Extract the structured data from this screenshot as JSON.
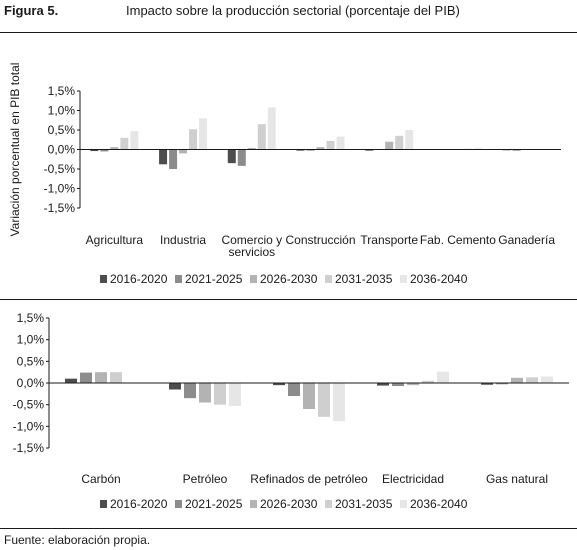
{
  "figure": {
    "label": "Figura 5.",
    "title": "Impacto sobre la producción sectorial (porcentaje del PIB)",
    "source": "Fuente: elaboración propia."
  },
  "colors": [
    "#4d4d4d",
    "#8c8c8c",
    "#b3b3b3",
    "#cfcfcf",
    "#e6e6e6"
  ],
  "chart_data": [
    {
      "type": "bar",
      "title": "",
      "xlabel": "",
      "ylabel": "Variación porcentual en PIB total",
      "ylim": [
        -1.5,
        1.5
      ],
      "yticks": [
        1.5,
        1.0,
        0.5,
        0.0,
        -0.5,
        -1.0,
        -1.5
      ],
      "ytick_labels": [
        "1,5%",
        "1,0%",
        "0,5%",
        "0,0%",
        "-0,5%",
        "-1,0%",
        "-1,5%"
      ],
      "grid": false,
      "legend_position": "bottom",
      "categories": [
        "Agricultura",
        "Industria",
        "Comercio y servicios",
        "Construcción",
        "Transporte",
        "Fab. Cemento",
        "Ganadería"
      ],
      "category_labels": [
        [
          "Agricultura"
        ],
        [
          "Industria"
        ],
        [
          "Comercio y",
          "servicios"
        ],
        [
          "Construcción"
        ],
        [
          "Transporte"
        ],
        [
          "Fab. Cemento"
        ],
        [
          "Ganadería"
        ]
      ],
      "series": [
        {
          "name": "2016-2020",
          "values": [
            -0.04,
            -0.38,
            -0.35,
            -0.03,
            -0.03,
            0.0,
            -0.02
          ]
        },
        {
          "name": "2021-2025",
          "values": [
            -0.05,
            -0.5,
            -0.42,
            -0.03,
            0.01,
            0.0,
            -0.03
          ]
        },
        {
          "name": "2026-2030",
          "values": [
            0.06,
            -0.1,
            0.04,
            0.06,
            0.2,
            0.01,
            -0.01
          ]
        },
        {
          "name": "2031-2035",
          "values": [
            0.3,
            0.52,
            0.65,
            0.22,
            0.35,
            0.02,
            0.0
          ]
        },
        {
          "name": "2036-2040",
          "values": [
            0.47,
            0.8,
            1.08,
            0.33,
            0.5,
            0.03,
            0.0
          ]
        }
      ]
    },
    {
      "type": "bar",
      "title": "",
      "xlabel": "",
      "ylabel": "",
      "ylim": [
        -1.5,
        1.5
      ],
      "yticks": [
        1.5,
        1.0,
        0.5,
        0.0,
        -0.5,
        -1.0,
        -1.5
      ],
      "ytick_labels": [
        "1,5%",
        "1,0%",
        "0,5%",
        "0,0%",
        "-0,5%",
        "-1,0%",
        "-1,5%"
      ],
      "grid": false,
      "legend_position": "bottom",
      "categories": [
        "Carbón",
        "Petróleo",
        "Refinados de petróleo",
        "Electricidad",
        "Gas natural"
      ],
      "category_labels": [
        [
          "Carbón"
        ],
        [
          "Petróleo"
        ],
        [
          "Refinados de petróleo"
        ],
        [
          "Electricidad"
        ],
        [
          "Gas natural"
        ]
      ],
      "series": [
        {
          "name": "2016-2020",
          "values": [
            0.1,
            -0.15,
            -0.05,
            -0.06,
            -0.04
          ]
        },
        {
          "name": "2021-2025",
          "values": [
            0.24,
            -0.35,
            -0.3,
            -0.07,
            -0.03
          ]
        },
        {
          "name": "2026-2030",
          "values": [
            0.25,
            -0.45,
            -0.6,
            -0.05,
            0.12
          ]
        },
        {
          "name": "2031-2035",
          "values": [
            0.25,
            -0.5,
            -0.78,
            0.05,
            0.13
          ]
        },
        {
          "name": "2036-2040",
          "values": [
            0.0,
            -0.53,
            -0.88,
            0.26,
            0.15
          ]
        }
      ]
    }
  ]
}
